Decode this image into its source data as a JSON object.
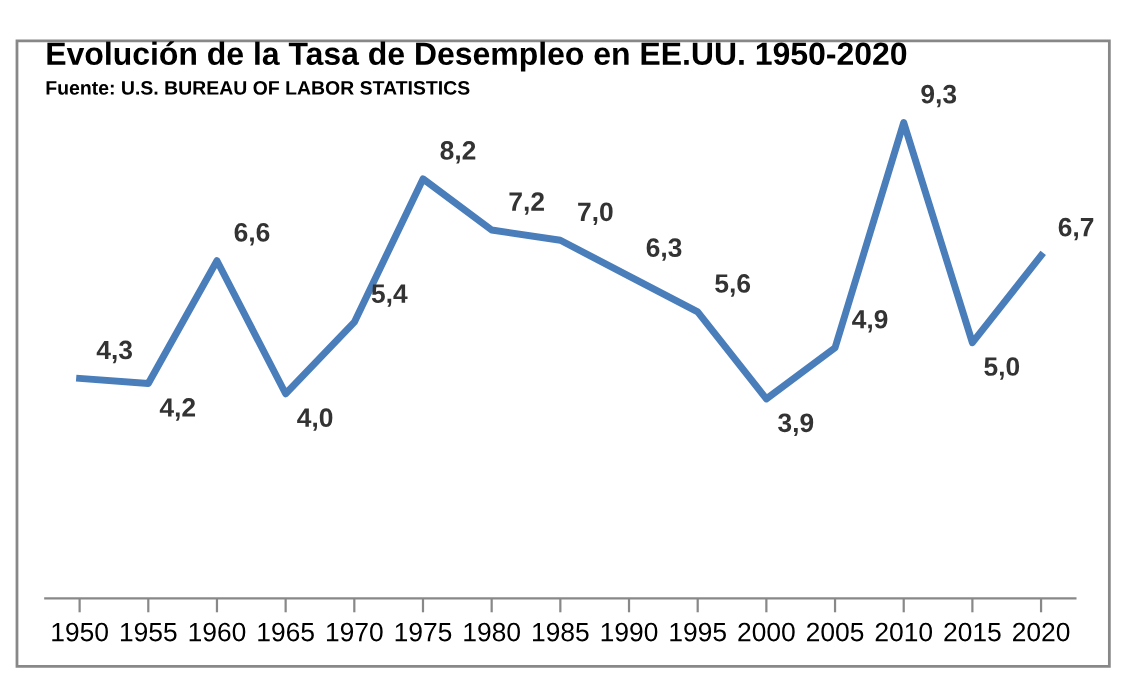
{
  "chart_data": {
    "type": "line",
    "title": "Evolución de la Tasa de Desempleo en EE.UU. 1950-2020",
    "subtitle": "Fuente: U.S. BUREAU OF LABOR STATISTICS",
    "categories": [
      "1950",
      "1955",
      "1960",
      "1965",
      "1970",
      "1975",
      "1980",
      "1985",
      "1990",
      "1995",
      "2000",
      "2005",
      "2010",
      "2015",
      "2020"
    ],
    "series": [
      {
        "color": "#4a7ebb",
        "values": [
          4.3,
          4.2,
          6.6,
          4.0,
          5.4,
          8.2,
          7.2,
          7.0,
          6.3,
          5.6,
          3.9,
          4.9,
          9.3,
          5.0,
          6.7
        ],
        "value_labels": [
          "4,3",
          "4,2",
          "6,6",
          "4,0",
          "5,4",
          "8,2",
          "7,2",
          "7,0",
          "6,3",
          "5,6",
          "3,9",
          "4,9",
          "9,3",
          "5,0",
          "6,7"
        ]
      }
    ],
    "tick_labels": "x",
    "grid": false,
    "legend": false,
    "marker": "none",
    "line_style": "solid"
  }
}
